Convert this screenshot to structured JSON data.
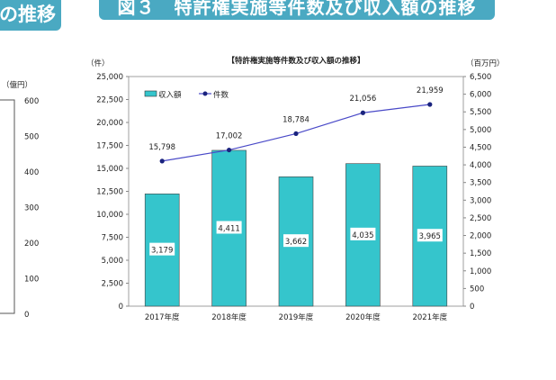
{
  "header": {
    "left_banner": "の推移",
    "main_banner": "図３　特許権実施等件数及び収入額の推移"
  },
  "left_chart": {
    "unit": "（億円）",
    "ticks": [
      "600",
      "500",
      "400",
      "300",
      "200",
      "100",
      "0"
    ]
  },
  "chart_data": {
    "type": "bar+line",
    "title": "【特許権実施等件数及び収入額の推移】",
    "left_unit": "（件）",
    "right_unit": "（百万円）",
    "categories": [
      "2017年度",
      "2018年度",
      "2019年度",
      "2020年度",
      "2021年度"
    ],
    "series": [
      {
        "name": "収入額",
        "type": "bar",
        "axis": "right",
        "values": [
          3179,
          4411,
          3662,
          4035,
          3965
        ],
        "labels": [
          "3,179",
          "4,411",
          "3,662",
          "4,035",
          "3,965"
        ],
        "color": "#35c5cc"
      },
      {
        "name": "件数",
        "type": "line",
        "axis": "left",
        "values": [
          15798,
          17002,
          18784,
          21056,
          21959
        ],
        "labels": [
          "15,798",
          "17,002",
          "18,784",
          "21,056",
          "21,959"
        ],
        "color": "#1a237e"
      }
    ],
    "left_ylim": [
      0,
      25000
    ],
    "left_ticks": [
      "0",
      "2,500",
      "5,000",
      "7,500",
      "10,000",
      "12,500",
      "15,000",
      "17,500",
      "20,000",
      "22,500",
      "25,000"
    ],
    "right_ylim": [
      0,
      6500
    ],
    "right_ticks": [
      "0",
      "500",
      "1,000",
      "1,500",
      "2,000",
      "2,500",
      "3,000",
      "3,500",
      "4,000",
      "4,500",
      "5,000",
      "5,500",
      "6,000",
      "6,500"
    ],
    "legend": "top-left",
    "grid": false
  }
}
